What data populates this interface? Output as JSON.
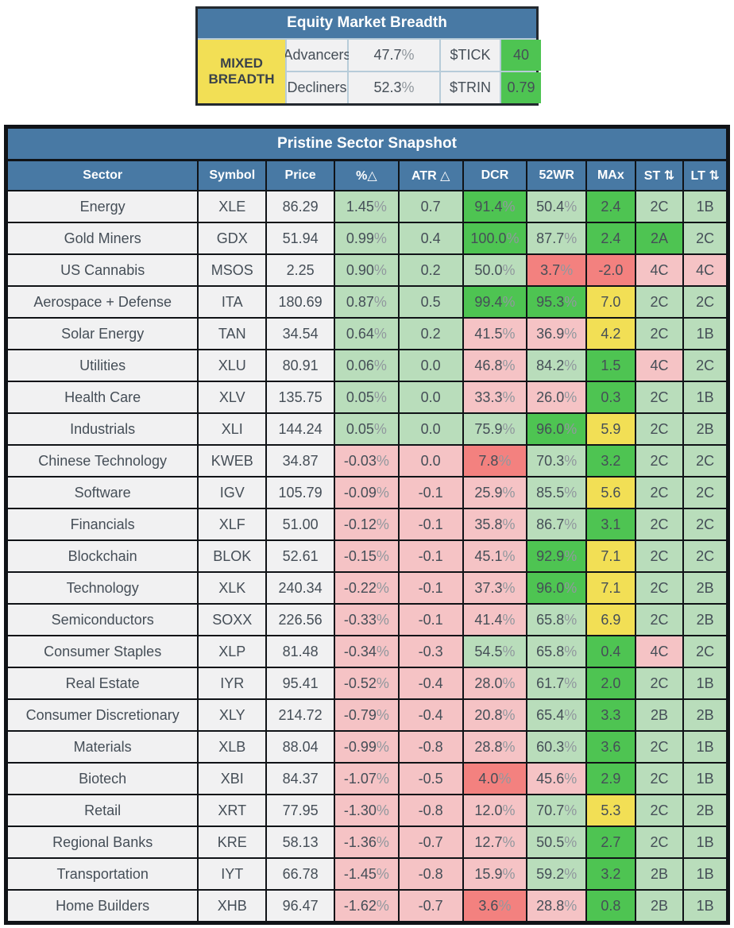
{
  "colors": {
    "header_blue": "#4879a4",
    "panel_border": "#23292f",
    "grid_border": "#101317",
    "light_border": "#b7ccd9",
    "neutral_cell": "#f1f1f2",
    "light_green": "#b9ddbb",
    "medium_green": "#4ec452",
    "yellow": "#f2df55",
    "pink": "#f5c3c5",
    "salmon": "#f3817f",
    "text_dark": "#454e57",
    "pct_sign": "#91989e"
  },
  "breadth": {
    "title": "Equity Market Breadth",
    "advancers_label": "Advancers",
    "advancers_value": "47.7%",
    "decliners_label": "Decliners",
    "decliners_value": "52.3%",
    "status": "MIXED BREADTH",
    "tick_label": "$TICK",
    "tick_value": "40",
    "trin_label": "$TRIN",
    "trin_value": "0.79"
  },
  "snapshot": {
    "title": "Pristine Sector Snapshot",
    "columns": [
      {
        "label": "Sector",
        "sortable": false
      },
      {
        "label": "Symbol",
        "sortable": false
      },
      {
        "label": "Price",
        "sortable": false
      },
      {
        "label": "%△",
        "sortable": false
      },
      {
        "label": "ATR △",
        "sortable": false
      },
      {
        "label": "DCR",
        "sortable": false
      },
      {
        "label": "52WR",
        "sortable": false
      },
      {
        "label": "MAx",
        "sortable": false
      },
      {
        "label": "ST ⇅",
        "sortable": true
      },
      {
        "label": "LT ⇅",
        "sortable": true
      }
    ],
    "rows": [
      {
        "sector": "Energy",
        "symbol": "XLE",
        "price": "86.29",
        "chg": {
          "v": "1.45%",
          "c": "lg"
        },
        "atr": {
          "v": "0.7",
          "c": "lg"
        },
        "dcr": {
          "v": "91.4%",
          "c": "mg"
        },
        "wr": {
          "v": "50.4%",
          "c": "lg"
        },
        "max": {
          "v": "2.4",
          "c": "mg"
        },
        "st": {
          "v": "2C",
          "c": "lg"
        },
        "lt": {
          "v": "1B",
          "c": "lg"
        }
      },
      {
        "sector": "Gold Miners",
        "symbol": "GDX",
        "price": "51.94",
        "chg": {
          "v": "0.99%",
          "c": "lg"
        },
        "atr": {
          "v": "0.4",
          "c": "lg"
        },
        "dcr": {
          "v": "100.0%",
          "c": "mg"
        },
        "wr": {
          "v": "87.7%",
          "c": "lg"
        },
        "max": {
          "v": "2.4",
          "c": "mg"
        },
        "st": {
          "v": "2A",
          "c": "mg"
        },
        "lt": {
          "v": "2C",
          "c": "lg"
        }
      },
      {
        "sector": "US Cannabis",
        "symbol": "MSOS",
        "price": "2.25",
        "chg": {
          "v": "0.90%",
          "c": "lg"
        },
        "atr": {
          "v": "0.2",
          "c": "lg"
        },
        "dcr": {
          "v": "50.0%",
          "c": "lg"
        },
        "wr": {
          "v": "3.7%",
          "c": "sa"
        },
        "max": {
          "v": "-2.0",
          "c": "sa"
        },
        "st": {
          "v": "4C",
          "c": "pk"
        },
        "lt": {
          "v": "4C",
          "c": "pk"
        }
      },
      {
        "sector": "Aerospace + Defense",
        "symbol": "ITA",
        "price": "180.69",
        "chg": {
          "v": "0.87%",
          "c": "lg"
        },
        "atr": {
          "v": "0.5",
          "c": "lg"
        },
        "dcr": {
          "v": "99.4%",
          "c": "mg"
        },
        "wr": {
          "v": "95.3%",
          "c": "mg"
        },
        "max": {
          "v": "7.0",
          "c": "yl"
        },
        "st": {
          "v": "2C",
          "c": "lg"
        },
        "lt": {
          "v": "2C",
          "c": "lg"
        }
      },
      {
        "sector": "Solar Energy",
        "symbol": "TAN",
        "price": "34.54",
        "chg": {
          "v": "0.64%",
          "c": "lg"
        },
        "atr": {
          "v": "0.2",
          "c": "lg"
        },
        "dcr": {
          "v": "41.5%",
          "c": "pk"
        },
        "wr": {
          "v": "36.9%",
          "c": "pk"
        },
        "max": {
          "v": "4.2",
          "c": "yl"
        },
        "st": {
          "v": "2C",
          "c": "lg"
        },
        "lt": {
          "v": "1B",
          "c": "lg"
        }
      },
      {
        "sector": "Utilities",
        "symbol": "XLU",
        "price": "80.91",
        "chg": {
          "v": "0.06%",
          "c": "lg"
        },
        "atr": {
          "v": "0.0",
          "c": "lg"
        },
        "dcr": {
          "v": "46.8%",
          "c": "pk"
        },
        "wr": {
          "v": "84.2%",
          "c": "lg"
        },
        "max": {
          "v": "1.5",
          "c": "mg"
        },
        "st": {
          "v": "4C",
          "c": "pk"
        },
        "lt": {
          "v": "2C",
          "c": "lg"
        }
      },
      {
        "sector": "Health Care",
        "symbol": "XLV",
        "price": "135.75",
        "chg": {
          "v": "0.05%",
          "c": "lg"
        },
        "atr": {
          "v": "0.0",
          "c": "lg"
        },
        "dcr": {
          "v": "33.3%",
          "c": "pk"
        },
        "wr": {
          "v": "26.0%",
          "c": "pk"
        },
        "max": {
          "v": "0.3",
          "c": "mg"
        },
        "st": {
          "v": "2C",
          "c": "lg"
        },
        "lt": {
          "v": "1B",
          "c": "lg"
        }
      },
      {
        "sector": "Industrials",
        "symbol": "XLI",
        "price": "144.24",
        "chg": {
          "v": "0.05%",
          "c": "lg"
        },
        "atr": {
          "v": "0.0",
          "c": "lg"
        },
        "dcr": {
          "v": "75.9%",
          "c": "lg"
        },
        "wr": {
          "v": "96.0%",
          "c": "mg"
        },
        "max": {
          "v": "5.9",
          "c": "yl"
        },
        "st": {
          "v": "2C",
          "c": "lg"
        },
        "lt": {
          "v": "2B",
          "c": "lg"
        }
      },
      {
        "sector": "Chinese Technology",
        "symbol": "KWEB",
        "price": "34.87",
        "chg": {
          "v": "-0.03%",
          "c": "pk"
        },
        "atr": {
          "v": "0.0",
          "c": "pk"
        },
        "dcr": {
          "v": "7.8%",
          "c": "sa"
        },
        "wr": {
          "v": "70.3%",
          "c": "lg"
        },
        "max": {
          "v": "3.2",
          "c": "mg"
        },
        "st": {
          "v": "2C",
          "c": "lg"
        },
        "lt": {
          "v": "2C",
          "c": "lg"
        }
      },
      {
        "sector": "Software",
        "symbol": "IGV",
        "price": "105.79",
        "chg": {
          "v": "-0.09%",
          "c": "pk"
        },
        "atr": {
          "v": "-0.1",
          "c": "pk"
        },
        "dcr": {
          "v": "25.9%",
          "c": "pk"
        },
        "wr": {
          "v": "85.5%",
          "c": "lg"
        },
        "max": {
          "v": "5.6",
          "c": "yl"
        },
        "st": {
          "v": "2C",
          "c": "lg"
        },
        "lt": {
          "v": "2C",
          "c": "lg"
        }
      },
      {
        "sector": "Financials",
        "symbol": "XLF",
        "price": "51.00",
        "chg": {
          "v": "-0.12%",
          "c": "pk"
        },
        "atr": {
          "v": "-0.1",
          "c": "pk"
        },
        "dcr": {
          "v": "35.8%",
          "c": "pk"
        },
        "wr": {
          "v": "86.7%",
          "c": "lg"
        },
        "max": {
          "v": "3.1",
          "c": "mg"
        },
        "st": {
          "v": "2C",
          "c": "lg"
        },
        "lt": {
          "v": "2C",
          "c": "lg"
        }
      },
      {
        "sector": "Blockchain",
        "symbol": "BLOK",
        "price": "52.61",
        "chg": {
          "v": "-0.15%",
          "c": "pk"
        },
        "atr": {
          "v": "-0.1",
          "c": "pk"
        },
        "dcr": {
          "v": "45.1%",
          "c": "pk"
        },
        "wr": {
          "v": "92.9%",
          "c": "mg"
        },
        "max": {
          "v": "7.1",
          "c": "yl"
        },
        "st": {
          "v": "2C",
          "c": "lg"
        },
        "lt": {
          "v": "2C",
          "c": "lg"
        }
      },
      {
        "sector": "Technology",
        "symbol": "XLK",
        "price": "240.34",
        "chg": {
          "v": "-0.22%",
          "c": "pk"
        },
        "atr": {
          "v": "-0.1",
          "c": "pk"
        },
        "dcr": {
          "v": "37.3%",
          "c": "pk"
        },
        "wr": {
          "v": "96.0%",
          "c": "mg"
        },
        "max": {
          "v": "7.1",
          "c": "yl"
        },
        "st": {
          "v": "2C",
          "c": "lg"
        },
        "lt": {
          "v": "2B",
          "c": "lg"
        }
      },
      {
        "sector": "Semiconductors",
        "symbol": "SOXX",
        "price": "226.56",
        "chg": {
          "v": "-0.33%",
          "c": "pk"
        },
        "atr": {
          "v": "-0.1",
          "c": "pk"
        },
        "dcr": {
          "v": "41.4%",
          "c": "pk"
        },
        "wr": {
          "v": "65.8%",
          "c": "lg"
        },
        "max": {
          "v": "6.9",
          "c": "yl"
        },
        "st": {
          "v": "2C",
          "c": "lg"
        },
        "lt": {
          "v": "2B",
          "c": "lg"
        }
      },
      {
        "sector": "Consumer Staples",
        "symbol": "XLP",
        "price": "81.48",
        "chg": {
          "v": "-0.34%",
          "c": "pk"
        },
        "atr": {
          "v": "-0.3",
          "c": "pk"
        },
        "dcr": {
          "v": "54.5%",
          "c": "lg"
        },
        "wr": {
          "v": "65.8%",
          "c": "lg"
        },
        "max": {
          "v": "0.4",
          "c": "mg"
        },
        "st": {
          "v": "4C",
          "c": "pk"
        },
        "lt": {
          "v": "2C",
          "c": "lg"
        }
      },
      {
        "sector": "Real Estate",
        "symbol": "IYR",
        "price": "95.41",
        "chg": {
          "v": "-0.52%",
          "c": "pk"
        },
        "atr": {
          "v": "-0.4",
          "c": "pk"
        },
        "dcr": {
          "v": "28.0%",
          "c": "pk"
        },
        "wr": {
          "v": "61.7%",
          "c": "lg"
        },
        "max": {
          "v": "2.0",
          "c": "mg"
        },
        "st": {
          "v": "2C",
          "c": "lg"
        },
        "lt": {
          "v": "1B",
          "c": "lg"
        }
      },
      {
        "sector": "Consumer Discretionary",
        "symbol": "XLY",
        "price": "214.72",
        "chg": {
          "v": "-0.79%",
          "c": "pk"
        },
        "atr": {
          "v": "-0.4",
          "c": "pk"
        },
        "dcr": {
          "v": "20.8%",
          "c": "pk"
        },
        "wr": {
          "v": "65.4%",
          "c": "lg"
        },
        "max": {
          "v": "3.3",
          "c": "mg"
        },
        "st": {
          "v": "2B",
          "c": "lg"
        },
        "lt": {
          "v": "2B",
          "c": "lg"
        }
      },
      {
        "sector": "Materials",
        "symbol": "XLB",
        "price": "88.04",
        "chg": {
          "v": "-0.99%",
          "c": "pk"
        },
        "atr": {
          "v": "-0.8",
          "c": "pk"
        },
        "dcr": {
          "v": "28.8%",
          "c": "pk"
        },
        "wr": {
          "v": "60.3%",
          "c": "lg"
        },
        "max": {
          "v": "3.6",
          "c": "mg"
        },
        "st": {
          "v": "2C",
          "c": "lg"
        },
        "lt": {
          "v": "1B",
          "c": "lg"
        }
      },
      {
        "sector": "Biotech",
        "symbol": "XBI",
        "price": "84.37",
        "chg": {
          "v": "-1.07%",
          "c": "pk"
        },
        "atr": {
          "v": "-0.5",
          "c": "pk"
        },
        "dcr": {
          "v": "4.0%",
          "c": "sa"
        },
        "wr": {
          "v": "45.6%",
          "c": "pk"
        },
        "max": {
          "v": "2.9",
          "c": "mg"
        },
        "st": {
          "v": "2C",
          "c": "lg"
        },
        "lt": {
          "v": "1B",
          "c": "lg"
        }
      },
      {
        "sector": "Retail",
        "symbol": "XRT",
        "price": "77.95",
        "chg": {
          "v": "-1.30%",
          "c": "pk"
        },
        "atr": {
          "v": "-0.8",
          "c": "pk"
        },
        "dcr": {
          "v": "12.0%",
          "c": "pk"
        },
        "wr": {
          "v": "70.7%",
          "c": "lg"
        },
        "max": {
          "v": "5.3",
          "c": "yl"
        },
        "st": {
          "v": "2C",
          "c": "lg"
        },
        "lt": {
          "v": "2B",
          "c": "lg"
        }
      },
      {
        "sector": "Regional Banks",
        "symbol": "KRE",
        "price": "58.13",
        "chg": {
          "v": "-1.36%",
          "c": "pk"
        },
        "atr": {
          "v": "-0.7",
          "c": "pk"
        },
        "dcr": {
          "v": "12.7%",
          "c": "pk"
        },
        "wr": {
          "v": "50.5%",
          "c": "lg"
        },
        "max": {
          "v": "2.7",
          "c": "mg"
        },
        "st": {
          "v": "2C",
          "c": "lg"
        },
        "lt": {
          "v": "1B",
          "c": "lg"
        }
      },
      {
        "sector": "Transportation",
        "symbol": "IYT",
        "price": "66.78",
        "chg": {
          "v": "-1.45%",
          "c": "pk"
        },
        "atr": {
          "v": "-0.8",
          "c": "pk"
        },
        "dcr": {
          "v": "15.9%",
          "c": "pk"
        },
        "wr": {
          "v": "59.2%",
          "c": "lg"
        },
        "max": {
          "v": "3.2",
          "c": "mg"
        },
        "st": {
          "v": "2B",
          "c": "lg"
        },
        "lt": {
          "v": "1B",
          "c": "lg"
        }
      },
      {
        "sector": "Home Builders",
        "symbol": "XHB",
        "price": "96.47",
        "chg": {
          "v": "-1.62%",
          "c": "pk"
        },
        "atr": {
          "v": "-0.7",
          "c": "pk"
        },
        "dcr": {
          "v": "3.6%",
          "c": "sa"
        },
        "wr": {
          "v": "28.8%",
          "c": "pk"
        },
        "max": {
          "v": "0.8",
          "c": "mg"
        },
        "st": {
          "v": "2B",
          "c": "lg"
        },
        "lt": {
          "v": "1B",
          "c": "lg"
        }
      }
    ]
  }
}
